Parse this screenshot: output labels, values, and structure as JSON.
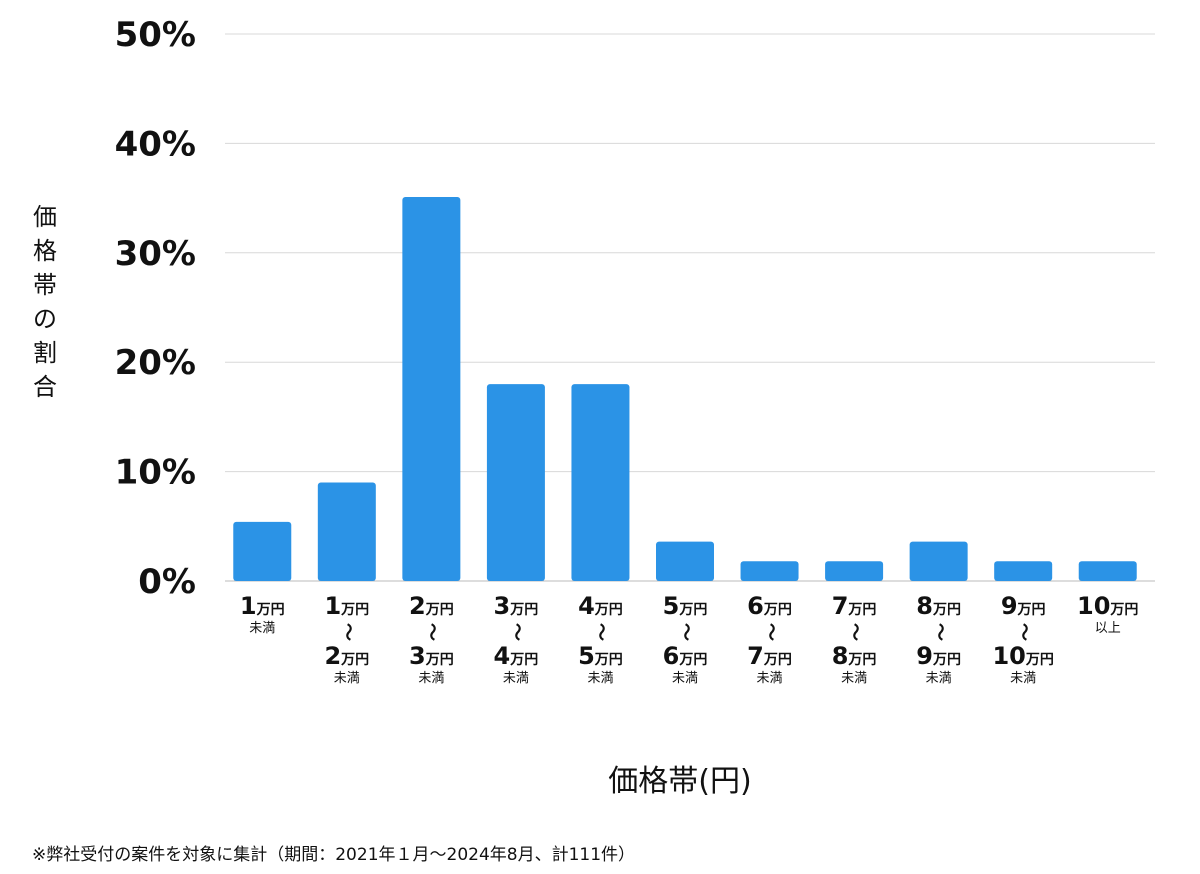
{
  "chart_data": {
    "type": "bar",
    "title": "",
    "xlabel": "価格帯(円)",
    "ylabel": "価格帯の割合",
    "ylim": [
      0,
      50
    ],
    "yticks": [
      "0%",
      "10%",
      "20%",
      "30%",
      "40%",
      "50%"
    ],
    "grid": true,
    "bar_color": "#2b93e6",
    "categories": [
      {
        "from": "1",
        "to": "",
        "unit": "万円",
        "note": "未満"
      },
      {
        "from": "1",
        "to": "2",
        "unit": "万円",
        "note": "未満"
      },
      {
        "from": "2",
        "to": "3",
        "unit": "万円",
        "note": "未満"
      },
      {
        "from": "3",
        "to": "4",
        "unit": "万円",
        "note": "未満"
      },
      {
        "from": "4",
        "to": "5",
        "unit": "万円",
        "note": "未満"
      },
      {
        "from": "5",
        "to": "6",
        "unit": "万円",
        "note": "未満"
      },
      {
        "from": "6",
        "to": "7",
        "unit": "万円",
        "note": "未満"
      },
      {
        "from": "7",
        "to": "8",
        "unit": "万円",
        "note": "未満"
      },
      {
        "from": "8",
        "to": "9",
        "unit": "万円",
        "note": "未満"
      },
      {
        "from": "9",
        "to": "10",
        "unit": "万円",
        "note": "未満"
      },
      {
        "from": "10",
        "to": "",
        "unit": "万円",
        "note": "以上"
      }
    ],
    "range_symbol": "〜",
    "values": [
      5.4,
      9.0,
      35.1,
      18.0,
      18.0,
      3.6,
      1.8,
      1.8,
      3.6,
      1.8,
      1.8
    ]
  },
  "footnote": "※弊社受付の案件を対象に集計（期間：2021年１月〜2024年8月、計111件）"
}
